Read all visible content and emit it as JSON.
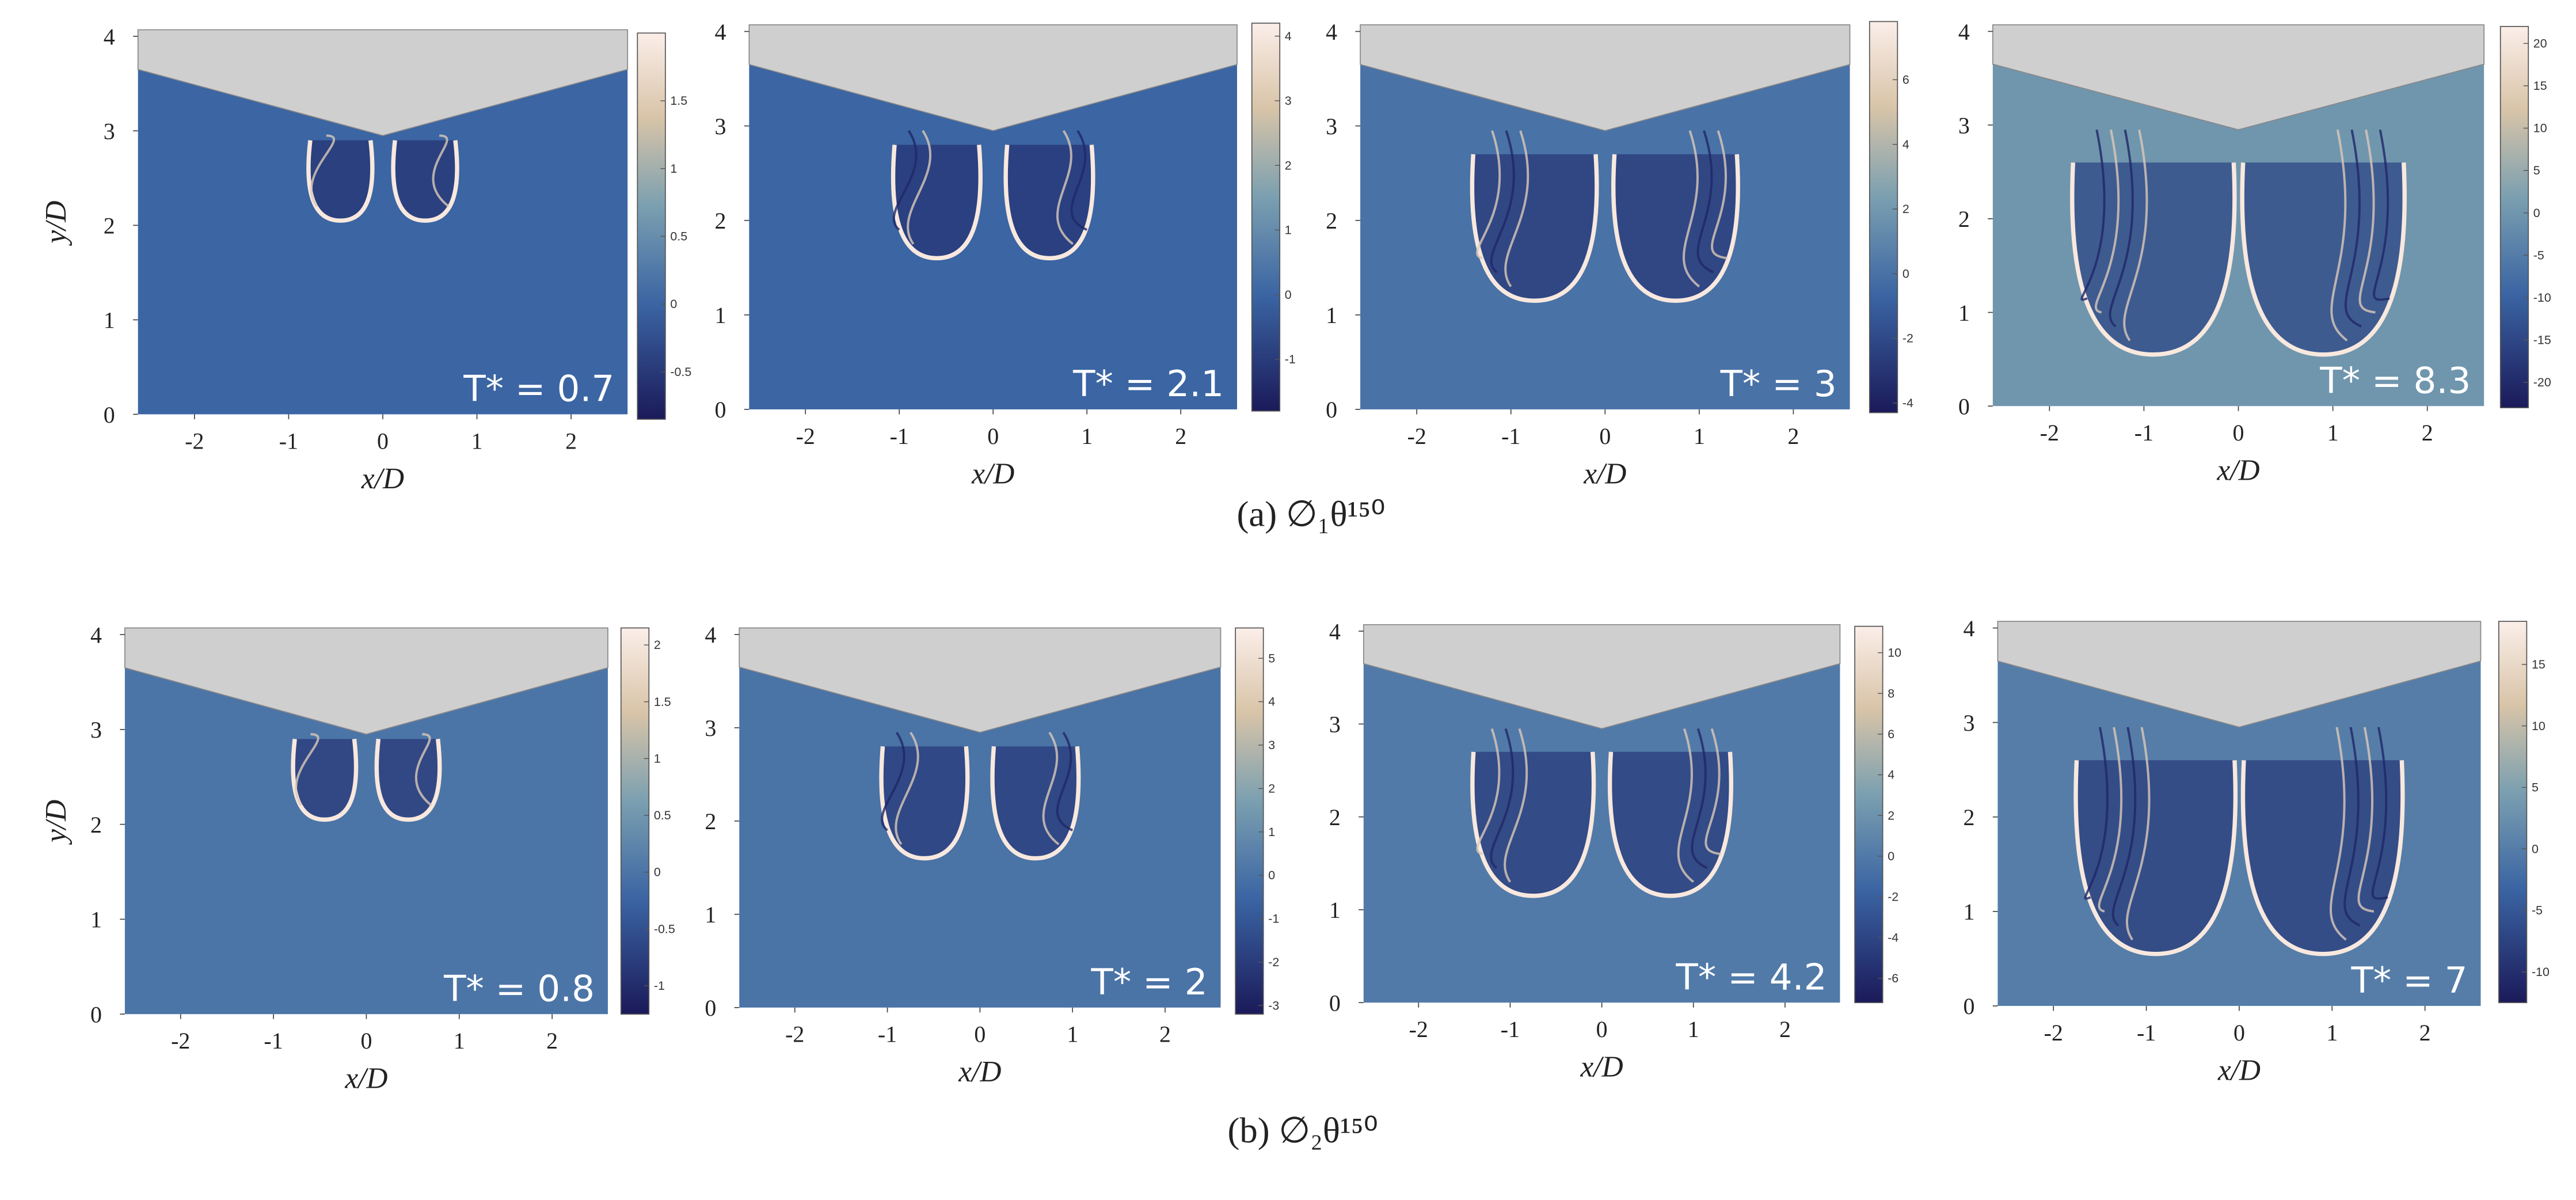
{
  "figure": {
    "rows": [
      {
        "caption": "(a) ∅₁θ¹⁵⁰",
        "panels": [
          {
            "time_label": "T* = 0.7",
            "x_label": "x/D",
            "y_label": "y/D",
            "xlim": [
              -2.6,
              2.6
            ],
            "ylim": [
              0,
              4.07
            ],
            "xticks": [
              -2,
              -1,
              0,
              1,
              2
            ],
            "yticks": [
              0,
              1,
              2,
              3,
              4
            ],
            "colorbar": {
              "lim": [
                -0.85,
                2
              ],
              "ticks": [
                -0.5,
                0,
                0.5,
                1,
                1.5
              ]
            }
          },
          {
            "time_label": "T* = 2.1",
            "x_label": "x/D",
            "xlim": [
              -2.6,
              2.6
            ],
            "ylim": [
              0,
              4.07
            ],
            "xticks": [
              -2,
              -1,
              0,
              1,
              2
            ],
            "yticks": [
              0,
              1,
              2,
              3,
              4
            ],
            "colorbar": {
              "lim": [
                -1.8,
                4.2
              ],
              "ticks": [
                -1,
                0,
                1,
                2,
                3,
                4
              ]
            }
          },
          {
            "time_label": "T* = 3",
            "x_label": "x/D",
            "xlim": [
              -2.6,
              2.6
            ],
            "ylim": [
              0,
              4.07
            ],
            "xticks": [
              -2,
              -1,
              0,
              1,
              2
            ],
            "yticks": [
              0,
              1,
              2,
              3,
              4
            ],
            "colorbar": {
              "lim": [
                -4.3,
                7.8
              ],
              "ticks": [
                -4,
                -2,
                0,
                2,
                4,
                6
              ]
            }
          },
          {
            "time_label": "T* = 8.3",
            "x_label": "x/D",
            "xlim": [
              -2.6,
              2.6
            ],
            "ylim": [
              0,
              4.07
            ],
            "xticks": [
              -2,
              -1,
              0,
              1,
              2
            ],
            "yticks": [
              0,
              1,
              2,
              3,
              4
            ],
            "colorbar": {
              "lim": [
                -23,
                22
              ],
              "ticks": [
                -20,
                -15,
                -10,
                -5,
                0,
                5,
                10,
                15,
                20
              ]
            }
          }
        ]
      },
      {
        "caption": "(b) ∅₂θ¹⁵⁰",
        "panels": [
          {
            "time_label": "T* = 0.8",
            "x_label": "x/D",
            "y_label": "y/D",
            "xlim": [
              -2.6,
              2.6
            ],
            "ylim": [
              0,
              4.07
            ],
            "xticks": [
              -2,
              -1,
              0,
              1,
              2
            ],
            "yticks": [
              0,
              1,
              2,
              3,
              4
            ],
            "colorbar": {
              "lim": [
                -1.25,
                2.15
              ],
              "ticks": [
                -1,
                -0.5,
                0,
                0.5,
                1,
                1.5,
                2
              ]
            }
          },
          {
            "time_label": "T* = 2",
            "x_label": "x/D",
            "xlim": [
              -2.6,
              2.6
            ],
            "ylim": [
              0,
              4.07
            ],
            "xticks": [
              -2,
              -1,
              0,
              1,
              2
            ],
            "yticks": [
              0,
              1,
              2,
              3,
              4
            ],
            "colorbar": {
              "lim": [
                -3.2,
                5.7
              ],
              "ticks": [
                -3,
                -2,
                -1,
                0,
                1,
                2,
                3,
                4,
                5
              ]
            }
          },
          {
            "time_label": "T* = 4.2",
            "x_label": "x/D",
            "xlim": [
              -2.6,
              2.6
            ],
            "ylim": [
              0,
              4.07
            ],
            "xticks": [
              -2,
              -1,
              0,
              1,
              2
            ],
            "yticks": [
              0,
              1,
              2,
              3,
              4
            ],
            "colorbar": {
              "lim": [
                -7.2,
                11.3
              ],
              "ticks": [
                -6,
                -4,
                -2,
                0,
                2,
                4,
                6,
                8,
                10
              ]
            }
          },
          {
            "time_label": "T* = 7",
            "x_label": "x/D",
            "xlim": [
              -2.6,
              2.6
            ],
            "ylim": [
              0,
              4.07
            ],
            "xticks": [
              -2,
              -1,
              0,
              1,
              2
            ],
            "yticks": [
              0,
              1,
              2,
              3,
              4
            ],
            "colorbar": {
              "lim": [
                -12.5,
                18.5
              ],
              "ticks": [
                -10,
                -5,
                0,
                5,
                10,
                15
              ]
            }
          }
        ]
      }
    ]
  }
}
